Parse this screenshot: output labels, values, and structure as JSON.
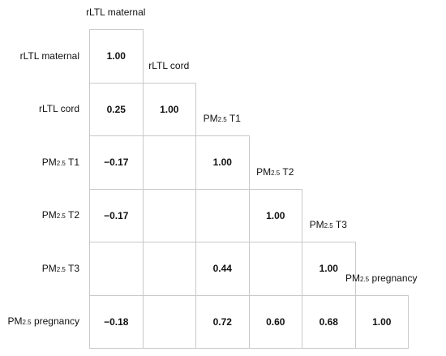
{
  "chart_data": {
    "type": "heatmap",
    "variables": [
      {
        "base": "rLTL maternal",
        "sub": "",
        "suffix": ""
      },
      {
        "base": "rLTL cord",
        "sub": "",
        "suffix": ""
      },
      {
        "base": "PM",
        "sub": "2.5",
        "suffix": " T1"
      },
      {
        "base": "PM",
        "sub": "2.5",
        "suffix": " T2"
      },
      {
        "base": "PM",
        "sub": "2.5",
        "suffix": " T3"
      },
      {
        "base": "PM",
        "sub": "2.5",
        "suffix": " pregnancy"
      }
    ],
    "cells": [
      [
        "1.00"
      ],
      [
        "0.25",
        "1.00"
      ],
      [
        "−0.17",
        "",
        "1.00"
      ],
      [
        "−0.17",
        "",
        "",
        "1.00"
      ],
      [
        "",
        "",
        "0.44",
        "",
        "1.00"
      ],
      [
        "−0.18",
        "",
        "0.72",
        "0.60",
        "0.68",
        "1.00"
      ]
    ],
    "values": [
      [
        1.0,
        null,
        null,
        null,
        null,
        null
      ],
      [
        0.25,
        1.0,
        null,
        null,
        null,
        null
      ],
      [
        -0.17,
        null,
        1.0,
        null,
        null,
        null
      ],
      [
        -0.17,
        null,
        null,
        1.0,
        null,
        null
      ],
      [
        null,
        null,
        0.44,
        null,
        1.0,
        null
      ],
      [
        -0.18,
        null,
        0.72,
        0.6,
        0.68,
        1.0
      ]
    ],
    "layout": "lower-triangle",
    "grid": true
  }
}
